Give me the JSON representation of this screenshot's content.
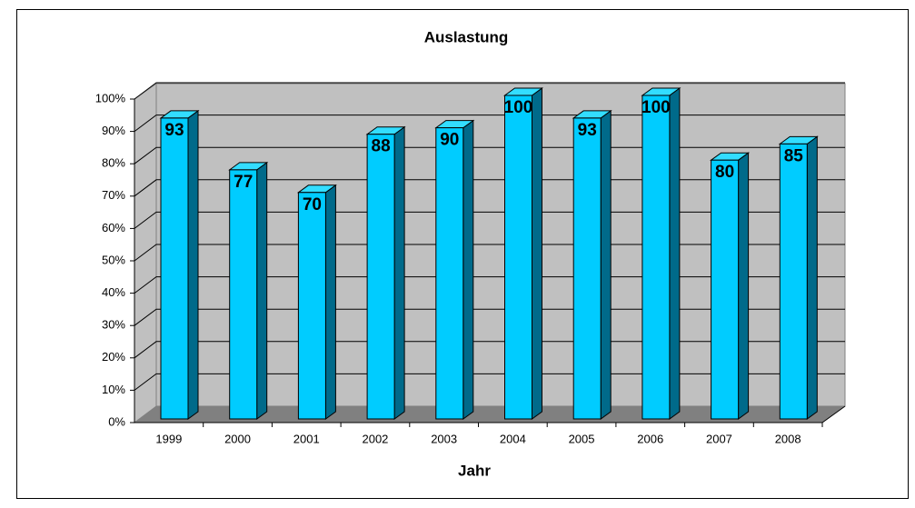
{
  "chart_data": {
    "type": "bar",
    "title": "Auslastung",
    "x_label": "Jahr",
    "categories": [
      "1999",
      "2000",
      "2001",
      "2002",
      "2003",
      "2004",
      "2005",
      "2006",
      "2007",
      "2008"
    ],
    "values": [
      93,
      77,
      70,
      88,
      90,
      100,
      93,
      100,
      80,
      85
    ],
    "color": "#00ccff",
    "ylim": [
      0,
      100
    ],
    "yticks": [
      {
        "value": 0,
        "label": "0%"
      },
      {
        "value": 10,
        "label": "10%"
      },
      {
        "value": 20,
        "label": "20%"
      },
      {
        "value": 30,
        "label": "30%"
      },
      {
        "value": 40,
        "label": "40%"
      },
      {
        "value": 50,
        "label": "50%"
      },
      {
        "value": 60,
        "label": "60%"
      },
      {
        "value": 70,
        "label": "70%"
      },
      {
        "value": 80,
        "label": "80%"
      },
      {
        "value": 90,
        "label": "90%"
      },
      {
        "value": 100,
        "label": "100%"
      }
    ],
    "grid": true
  }
}
